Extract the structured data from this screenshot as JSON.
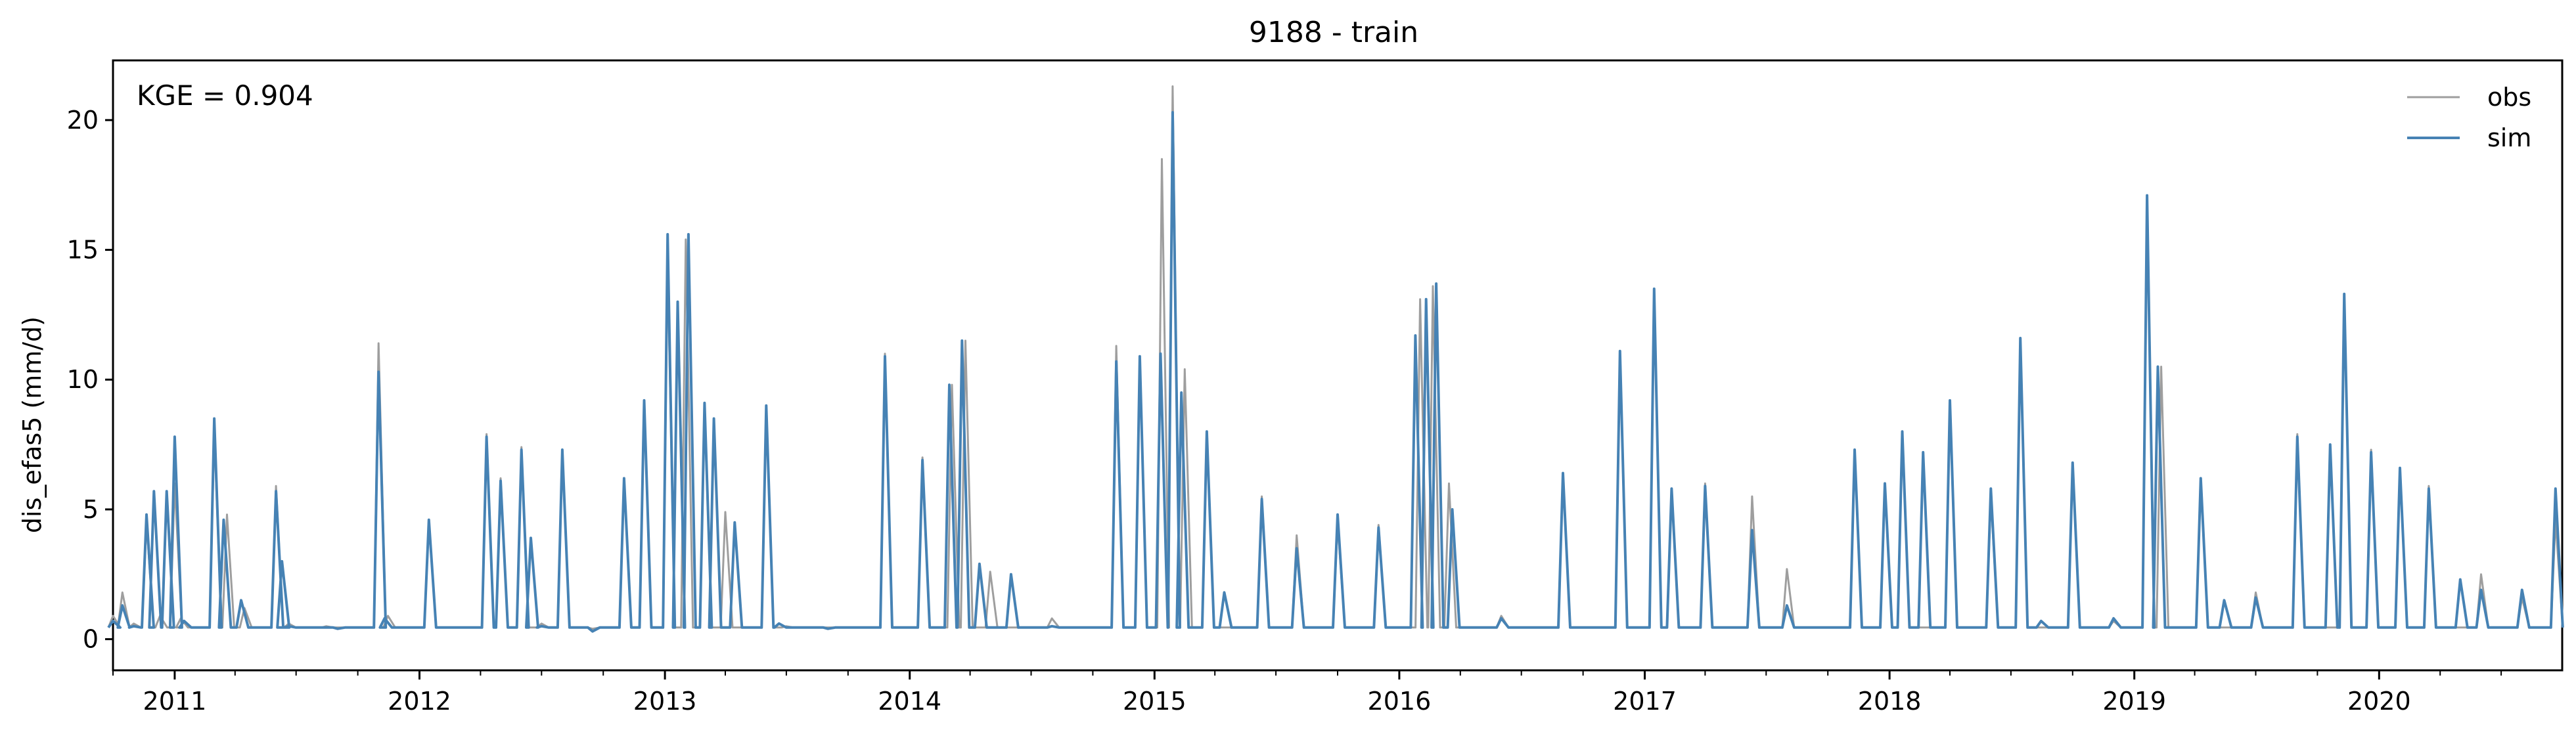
{
  "chart_data": {
    "type": "line",
    "title": "9188 - train",
    "ylabel": "dis_efas5 (mm/d)",
    "xlabel": "",
    "annotation": "KGE = 0.904",
    "x_range": [
      "2010-10-01",
      "2020-09-30"
    ],
    "ylim": [
      -1.2,
      22.3
    ],
    "y_ticks": [
      0,
      5,
      10,
      15,
      20
    ],
    "x_tick_labels": [
      "2011",
      "2012",
      "2013",
      "2014",
      "2015",
      "2016",
      "2017",
      "2018",
      "2019",
      "2020"
    ],
    "x_tick_dates": [
      "2011-01-01",
      "2012-01-01",
      "2013-01-01",
      "2014-01-01",
      "2015-01-01",
      "2016-01-01",
      "2017-01-01",
      "2018-01-01",
      "2019-01-01",
      "2020-01-01"
    ],
    "grid": false,
    "legend": {
      "placement": "top-right",
      "entries": [
        "obs",
        "sim"
      ]
    },
    "colors": {
      "obs": "#9e9e9e",
      "sim": "#4682b4"
    },
    "series": [
      {
        "name": "obs",
        "points": [
          [
            "2010-10-01",
            0.9
          ],
          [
            "2010-10-15",
            1.8
          ],
          [
            "2010-11-01",
            0.6
          ],
          [
            "2010-11-20",
            4.5
          ],
          [
            "2010-12-10",
            0.9
          ],
          [
            "2011-01-01",
            6.0
          ],
          [
            "2011-01-10",
            0.8
          ],
          [
            "2011-03-01",
            8.0
          ],
          [
            "2011-03-20",
            4.8
          ],
          [
            "2011-04-15",
            1.2
          ],
          [
            "2011-06-01",
            5.9
          ],
          [
            "2011-06-20",
            0.6
          ],
          [
            "2011-08-15",
            0.5
          ],
          [
            "2011-11-01",
            11.4
          ],
          [
            "2011-11-15",
            0.9
          ],
          [
            "2012-01-15",
            4.5
          ],
          [
            "2012-04-10",
            7.9
          ],
          [
            "2012-05-01",
            6.2
          ],
          [
            "2012-06-01",
            7.4
          ],
          [
            "2012-07-01",
            0.6
          ],
          [
            "2012-08-01",
            7.3
          ],
          [
            "2012-09-15",
            0.4
          ],
          [
            "2012-11-01",
            6.2
          ],
          [
            "2012-12-01",
            9.2
          ],
          [
            "2013-01-05",
            14.5
          ],
          [
            "2013-02-01",
            15.4
          ],
          [
            "2013-03-01",
            8.8
          ],
          [
            "2013-04-01",
            4.9
          ],
          [
            "2013-06-01",
            9.0
          ],
          [
            "2013-07-01",
            0.5
          ],
          [
            "2013-11-25",
            11.0
          ],
          [
            "2014-01-20",
            7.0
          ],
          [
            "2014-03-05",
            9.8
          ],
          [
            "2014-03-25",
            11.5
          ],
          [
            "2014-05-01",
            2.6
          ],
          [
            "2014-08-01",
            0.8
          ],
          [
            "2014-11-05",
            11.3
          ],
          [
            "2014-12-10",
            10.9
          ],
          [
            "2015-01-12",
            18.5
          ],
          [
            "2015-01-28",
            21.3
          ],
          [
            "2015-02-15",
            10.4
          ],
          [
            "2015-03-20",
            8.0
          ],
          [
            "2015-06-10",
            5.5
          ],
          [
            "2015-08-01",
            4.0
          ],
          [
            "2015-10-01",
            4.5
          ],
          [
            "2015-12-01",
            4.4
          ],
          [
            "2016-02-01",
            13.1
          ],
          [
            "2016-02-20",
            13.6
          ],
          [
            "2016-03-15",
            6.0
          ],
          [
            "2016-06-01",
            0.9
          ],
          [
            "2016-09-01",
            6.4
          ],
          [
            "2016-11-25",
            10.8
          ],
          [
            "2017-01-15",
            13.2
          ],
          [
            "2017-02-10",
            5.8
          ],
          [
            "2017-04-01",
            6.0
          ],
          [
            "2017-06-10",
            5.5
          ],
          [
            "2017-08-01",
            2.7
          ],
          [
            "2017-11-10",
            7.2
          ],
          [
            "2017-12-25",
            5.9
          ],
          [
            "2018-01-20",
            8.0
          ],
          [
            "2018-04-01",
            9.0
          ],
          [
            "2018-06-01",
            5.5
          ],
          [
            "2018-07-15",
            11.6
          ],
          [
            "2018-10-01",
            6.8
          ],
          [
            "2018-12-01",
            0.7
          ],
          [
            "2019-01-20",
            17.0
          ],
          [
            "2019-02-10",
            10.5
          ],
          [
            "2019-04-10",
            6.2
          ],
          [
            "2019-07-01",
            1.8
          ],
          [
            "2019-09-01",
            7.9
          ],
          [
            "2019-11-10",
            13.3
          ],
          [
            "2019-12-20",
            7.3
          ],
          [
            "2020-02-01",
            6.6
          ],
          [
            "2020-03-15",
            5.9
          ],
          [
            "2020-06-01",
            2.5
          ],
          [
            "2020-08-01",
            1.6
          ],
          [
            "2020-09-20",
            4.6
          ]
        ]
      },
      {
        "name": "sim",
        "points": [
          [
            "2010-10-01",
            0.7
          ],
          [
            "2010-10-15",
            1.3
          ],
          [
            "2010-11-01",
            0.5
          ],
          [
            "2010-11-20",
            4.8
          ],
          [
            "2010-12-01",
            5.7
          ],
          [
            "2010-12-20",
            5.7
          ],
          [
            "2011-01-01",
            7.8
          ],
          [
            "2011-01-15",
            0.7
          ],
          [
            "2011-03-01",
            8.5
          ],
          [
            "2011-03-15",
            4.6
          ],
          [
            "2011-04-10",
            1.5
          ],
          [
            "2011-06-01",
            5.7
          ],
          [
            "2011-06-10",
            3.0
          ],
          [
            "2011-06-20",
            0.5
          ],
          [
            "2011-09-01",
            0.4
          ],
          [
            "2011-11-01",
            10.3
          ],
          [
            "2011-11-10",
            0.8
          ],
          [
            "2012-01-15",
            4.6
          ],
          [
            "2012-04-10",
            7.8
          ],
          [
            "2012-05-01",
            6.1
          ],
          [
            "2012-06-01",
            7.3
          ],
          [
            "2012-06-15",
            3.9
          ],
          [
            "2012-07-01",
            0.5
          ],
          [
            "2012-08-01",
            7.3
          ],
          [
            "2012-09-15",
            0.3
          ],
          [
            "2012-11-01",
            6.2
          ],
          [
            "2012-12-01",
            9.2
          ],
          [
            "2013-01-05",
            15.6
          ],
          [
            "2013-01-20",
            13.0
          ],
          [
            "2013-02-05",
            15.6
          ],
          [
            "2013-03-01",
            9.1
          ],
          [
            "2013-03-15",
            8.5
          ],
          [
            "2013-04-15",
            4.5
          ],
          [
            "2013-06-01",
            9.0
          ],
          [
            "2013-06-20",
            0.6
          ],
          [
            "2013-09-01",
            0.4
          ],
          [
            "2013-11-25",
            10.9
          ],
          [
            "2014-01-20",
            6.9
          ],
          [
            "2014-03-01",
            9.8
          ],
          [
            "2014-03-20",
            11.5
          ],
          [
            "2014-04-15",
            2.9
          ],
          [
            "2014-06-01",
            2.5
          ],
          [
            "2014-08-01",
            0.5
          ],
          [
            "2014-11-05",
            10.7
          ],
          [
            "2014-12-10",
            10.9
          ],
          [
            "2015-01-10",
            11.0
          ],
          [
            "2015-01-28",
            20.3
          ],
          [
            "2015-02-10",
            9.5
          ],
          [
            "2015-03-20",
            8.0
          ],
          [
            "2015-04-15",
            1.8
          ],
          [
            "2015-06-10",
            5.4
          ],
          [
            "2015-08-01",
            3.5
          ],
          [
            "2015-10-01",
            4.8
          ],
          [
            "2015-12-01",
            4.3
          ],
          [
            "2016-01-25",
            11.7
          ],
          [
            "2016-02-10",
            13.1
          ],
          [
            "2016-02-25",
            13.7
          ],
          [
            "2016-03-20",
            5.0
          ],
          [
            "2016-06-01",
            0.8
          ],
          [
            "2016-09-01",
            6.4
          ],
          [
            "2016-11-25",
            11.1
          ],
          [
            "2017-01-15",
            13.5
          ],
          [
            "2017-02-10",
            5.8
          ],
          [
            "2017-04-01",
            5.9
          ],
          [
            "2017-06-10",
            4.2
          ],
          [
            "2017-08-01",
            1.3
          ],
          [
            "2017-11-10",
            7.3
          ],
          [
            "2017-12-25",
            6.0
          ],
          [
            "2018-01-20",
            8.0
          ],
          [
            "2018-02-20",
            7.2
          ],
          [
            "2018-04-01",
            9.2
          ],
          [
            "2018-06-01",
            5.8
          ],
          [
            "2018-07-15",
            11.6
          ],
          [
            "2018-08-15",
            0.7
          ],
          [
            "2018-10-01",
            6.8
          ],
          [
            "2018-12-01",
            0.8
          ],
          [
            "2019-01-20",
            17.1
          ],
          [
            "2019-02-05",
            10.5
          ],
          [
            "2019-04-10",
            6.2
          ],
          [
            "2019-05-15",
            1.5
          ],
          [
            "2019-07-01",
            1.6
          ],
          [
            "2019-09-01",
            7.8
          ],
          [
            "2019-10-20",
            7.5
          ],
          [
            "2019-11-10",
            13.3
          ],
          [
            "2019-12-20",
            7.2
          ],
          [
            "2020-02-01",
            6.6
          ],
          [
            "2020-03-15",
            5.8
          ],
          [
            "2020-05-01",
            2.3
          ],
          [
            "2020-06-01",
            1.9
          ],
          [
            "2020-08-01",
            1.9
          ],
          [
            "2020-09-20",
            5.8
          ]
        ]
      }
    ]
  }
}
